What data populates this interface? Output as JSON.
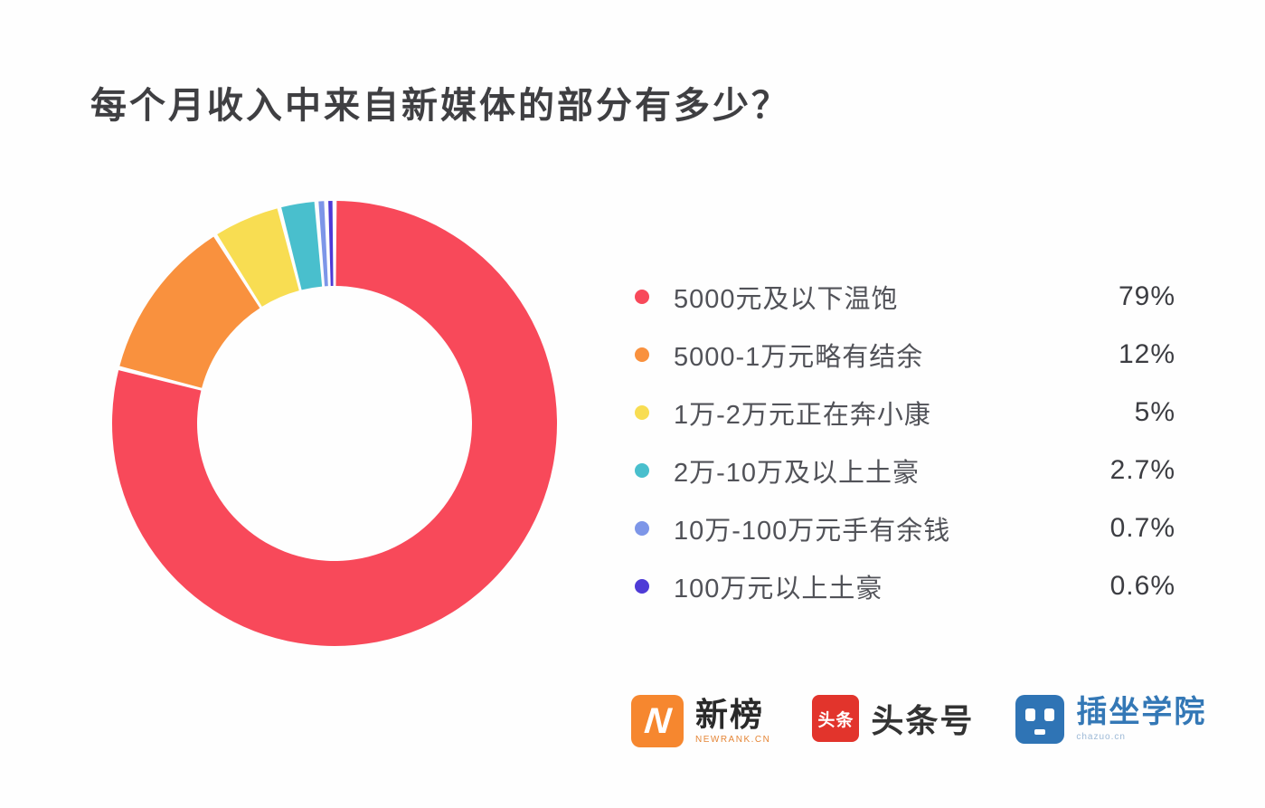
{
  "title": "每个月收入中来自新媒体的部分有多少？",
  "chart_data": {
    "type": "pie",
    "donut": true,
    "title": "每个月收入中来自新媒体的部分有多少？",
    "start_angle_deg": 0,
    "direction": "clockwise",
    "legend_position": "right",
    "outer_radius_px": 246,
    "inner_radius_px": 152,
    "segment_gap_deg": 1.1,
    "series": [
      {
        "label": "5000元及以下温饱",
        "value_pct": 79,
        "display": "79%",
        "color": "#f8495a"
      },
      {
        "label": "5000-1万元略有结余",
        "value_pct": 12,
        "display": "12%",
        "color": "#f9913e"
      },
      {
        "label": "1万-2万元正在奔小康",
        "value_pct": 5,
        "display": "5%",
        "color": "#f8dd52"
      },
      {
        "label": "2万-10万及以上土豪",
        "value_pct": 2.7,
        "display": "2.7%",
        "color": "#49bfcd"
      },
      {
        "label": "10万-100万元手有余钱",
        "value_pct": 0.7,
        "display": "0.7%",
        "color": "#7d96e8"
      },
      {
        "label": "100万元以上土豪",
        "value_pct": 0.6,
        "display": "0.6%",
        "color": "#4e3bd6"
      }
    ]
  },
  "footer": {
    "logos": [
      {
        "icon": "newrank-logo",
        "badge_letter": "N",
        "name": "新榜",
        "subtext": "NEWRANK.CN"
      },
      {
        "icon": "toutiao-logo",
        "badge_text": "头条",
        "name": "头条号"
      },
      {
        "icon": "chazuo-logo",
        "name": "插坐学院",
        "subtext": "chazuo.cn"
      }
    ]
  }
}
